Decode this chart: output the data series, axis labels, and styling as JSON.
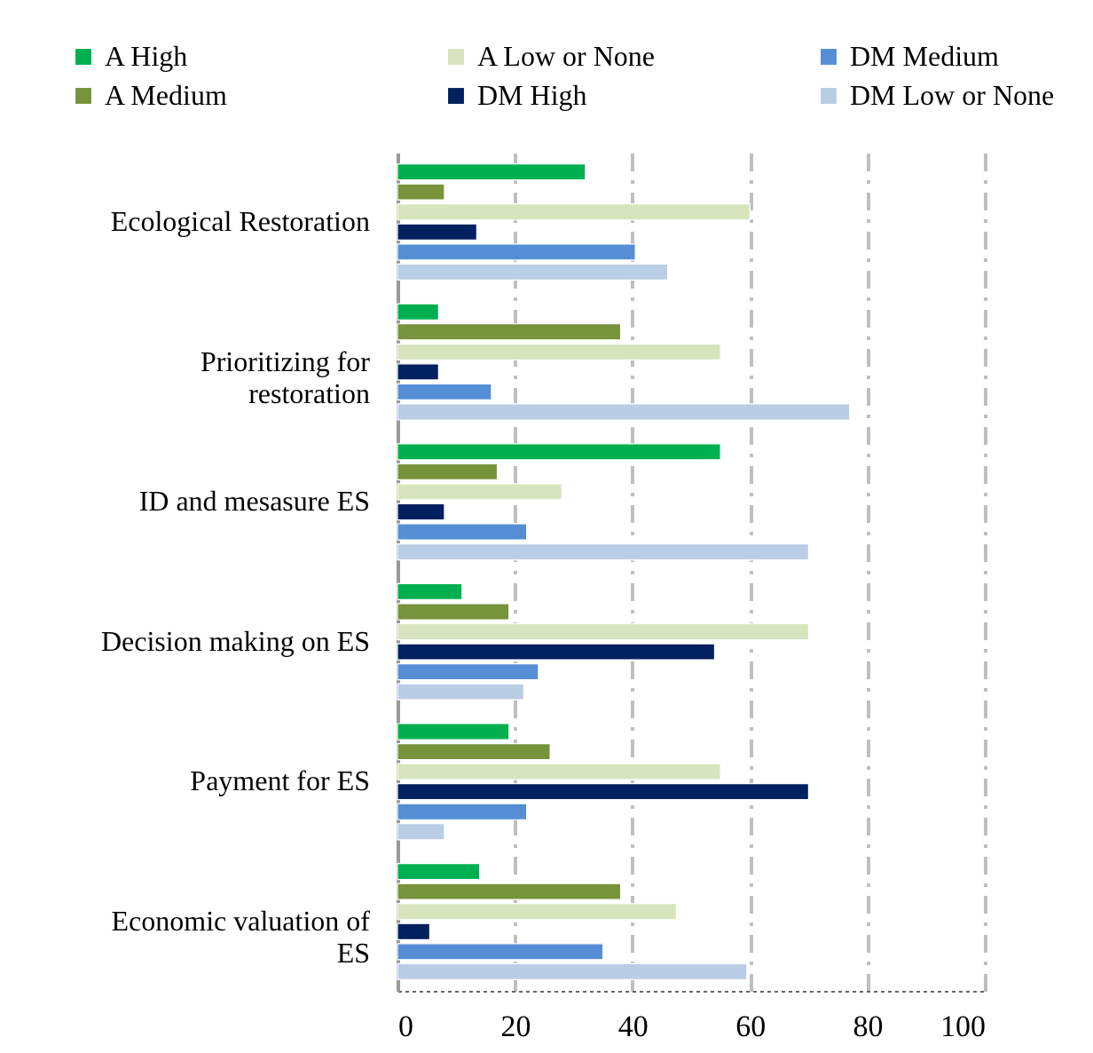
{
  "chart_data": {
    "type": "bar",
    "orientation": "horizontal",
    "categories": [
      "Ecological Restoration",
      "Prioritizing for restoration",
      "ID and mesasure ES",
      "Decision making on ES",
      "Payment for ES",
      "Economic valuation of ES"
    ],
    "series": [
      {
        "name": "A High",
        "color": "#00b050",
        "values": [
          32,
          7,
          55,
          11,
          19,
          14
        ]
      },
      {
        "name": "A Medium",
        "color": "#77933c",
        "values": [
          8,
          38,
          17,
          19,
          26,
          38
        ]
      },
      {
        "name": "A Low or None",
        "color": "#d7e4bd",
        "values": [
          60,
          55,
          28,
          70,
          55,
          47.5
        ]
      },
      {
        "name": "DM High",
        "color": "#002060",
        "values": [
          13.5,
          7,
          8,
          54,
          70,
          5.5
        ]
      },
      {
        "name": "DM Medium",
        "color": "#558ed5",
        "values": [
          40.5,
          16,
          22,
          24,
          22,
          35
        ]
      },
      {
        "name": "DM Low or None",
        "color": "#b9cde5",
        "values": [
          46,
          77,
          70,
          21.5,
          8,
          59.5
        ]
      }
    ],
    "xlim": [
      0,
      100
    ],
    "xticks": [
      0,
      20,
      40,
      60,
      80,
      100
    ],
    "grid": "x",
    "legend": "top"
  }
}
